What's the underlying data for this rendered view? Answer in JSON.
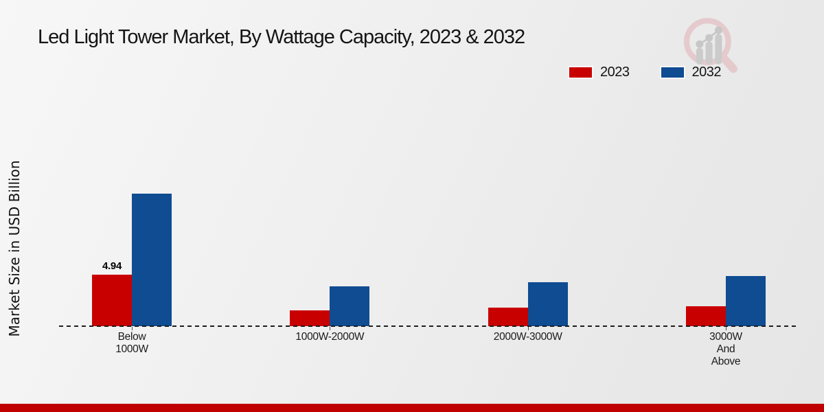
{
  "title": "Led Light Tower Market, By Wattage Capacity, 2023 & 2032",
  "ylabel": "Market Size in USD Billion",
  "legend": {
    "items": [
      {
        "label": "2023",
        "color": "#c80000"
      },
      {
        "label": "2032",
        "color": "#0f4c91"
      }
    ]
  },
  "icons": {
    "logo": "bar-chart-magnifier-logo"
  },
  "footer": {
    "bar_color": "#c00000"
  },
  "chart_data": {
    "type": "bar",
    "title": "Led Light Tower Market, By Wattage Capacity, 2023 & 2032",
    "xlabel": "",
    "ylabel": "Market Size in USD Billion",
    "categories": [
      "Below 1000W",
      "1000W-2000W",
      "2000W-3000W",
      "3000W And Above"
    ],
    "category_display_lines": [
      [
        "Below",
        "1000W"
      ],
      [
        "1000W-2000W"
      ],
      [
        "2000W-3000W"
      ],
      [
        "3000W",
        "And",
        "Above"
      ]
    ],
    "series": [
      {
        "name": "2023",
        "color": "#c80000",
        "values": [
          4.94,
          1.5,
          1.8,
          1.9
        ],
        "value_labels": [
          "4.94",
          "",
          "",
          ""
        ]
      },
      {
        "name": "2032",
        "color": "#0f4c91",
        "values": [
          12.7,
          3.8,
          4.2,
          4.8
        ],
        "value_labels": [
          "",
          "",
          "",
          ""
        ]
      }
    ],
    "ylim": [
      0,
      13
    ],
    "grid": false,
    "legend_position": "top-right",
    "baseline_style": "dashed-zero-line"
  }
}
